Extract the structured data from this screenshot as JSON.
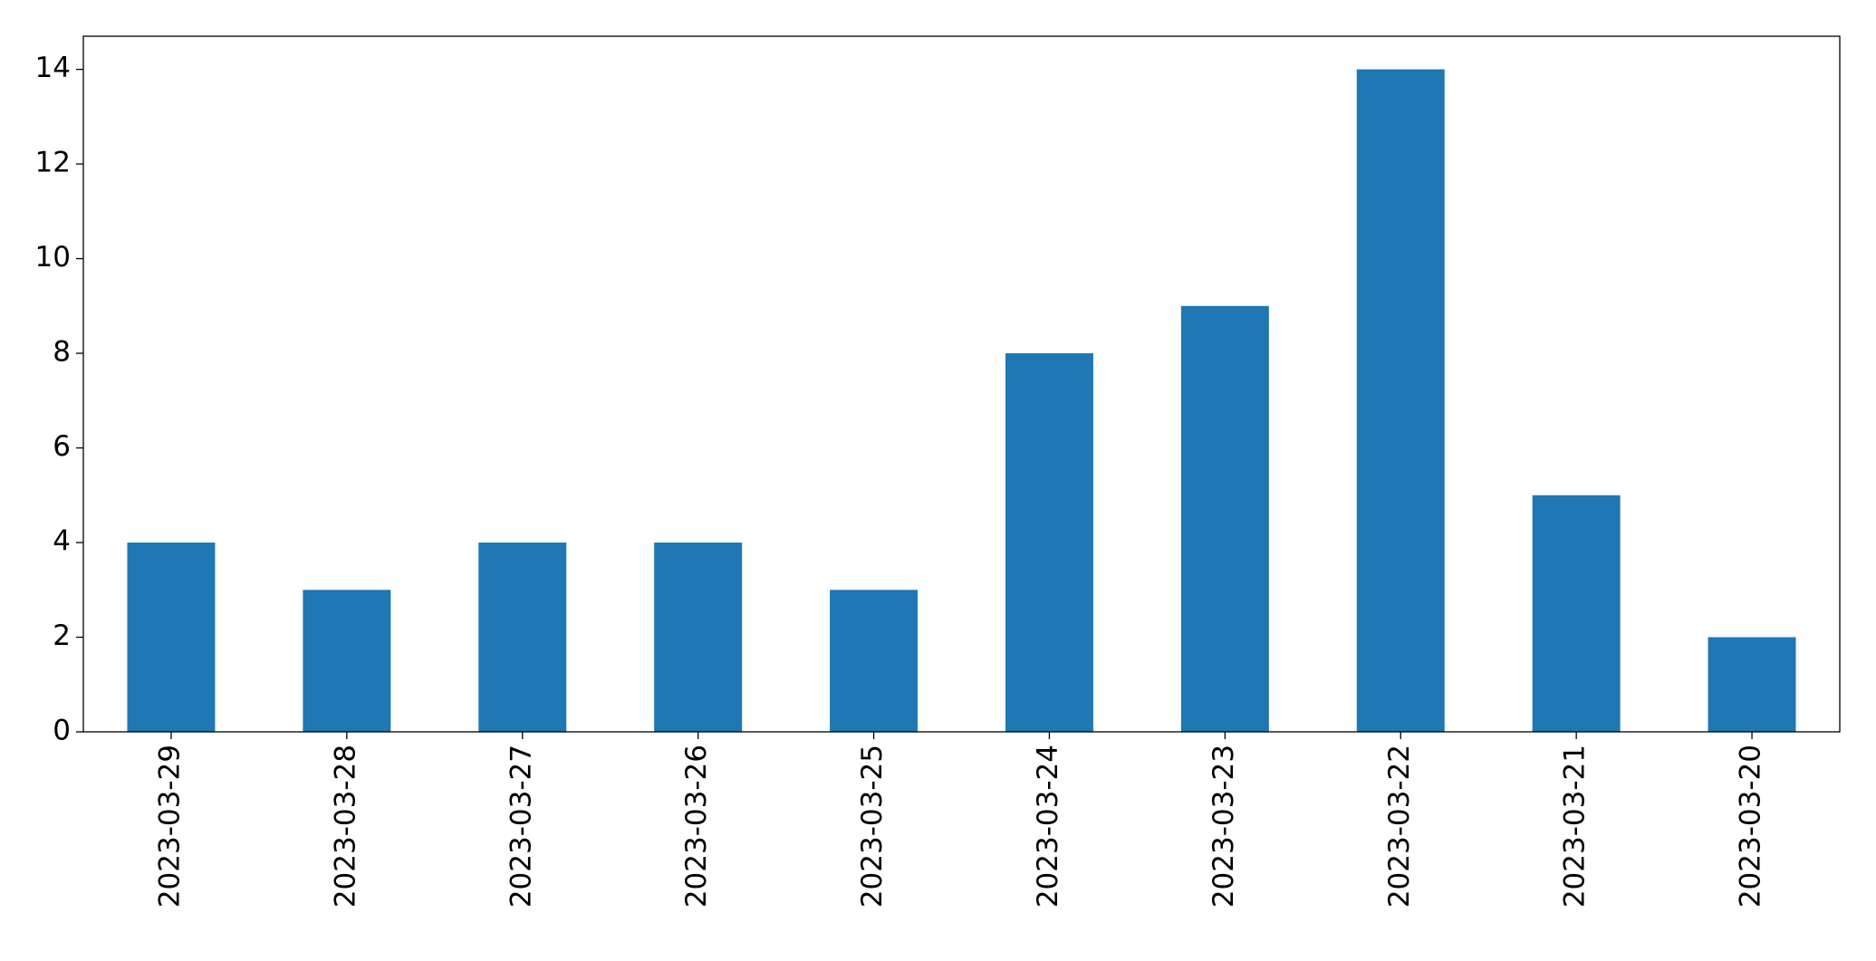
{
  "chart_data": {
    "type": "bar",
    "categories": [
      "2023-03-29",
      "2023-03-28",
      "2023-03-27",
      "2023-03-26",
      "2023-03-25",
      "2023-03-24",
      "2023-03-23",
      "2023-03-22",
      "2023-03-21",
      "2023-03-20"
    ],
    "values": [
      4,
      3,
      4,
      4,
      3,
      8,
      9,
      14,
      5,
      2
    ],
    "color": "#1f77b4",
    "ylim": [
      0,
      14.7
    ],
    "yticks": [
      0,
      2,
      4,
      6,
      8,
      10,
      12,
      14
    ],
    "grid": false
  }
}
